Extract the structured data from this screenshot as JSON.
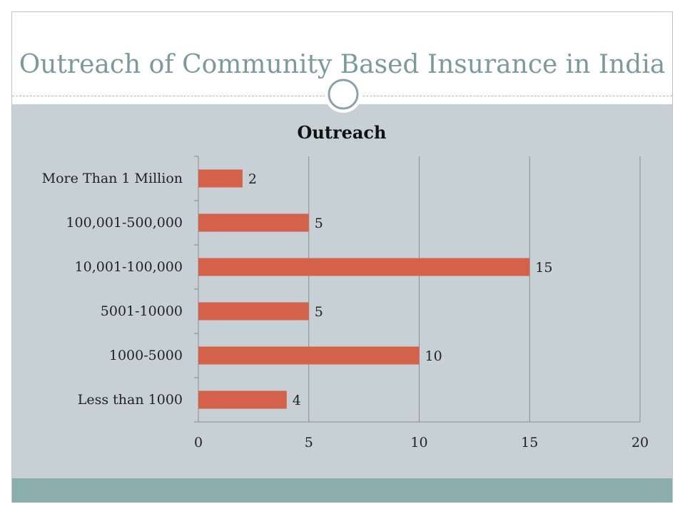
{
  "slide": {
    "title": "Outreach of Community Based Insurance in India"
  },
  "colors": {
    "title": "#7b9a9c",
    "panel": "#c7d0d5",
    "bottom_band": "#8aadad",
    "bar": "#d4624a",
    "grid": "#8c8c8c"
  },
  "chart_data": {
    "type": "bar",
    "orientation": "horizontal",
    "title": "Outreach",
    "categories": [
      "Less than 1000",
      "1000-5000",
      "5001-10000",
      "10,001-100,000",
      "100,001-500,000",
      "More Than 1 Million"
    ],
    "series": [
      {
        "values": [
          4,
          10,
          5,
          15,
          5,
          2
        ]
      }
    ],
    "xlim": [
      0,
      20
    ],
    "xticks": [
      0,
      5,
      10,
      15,
      20
    ],
    "grid": true,
    "legend": "none",
    "data_labels": true
  }
}
